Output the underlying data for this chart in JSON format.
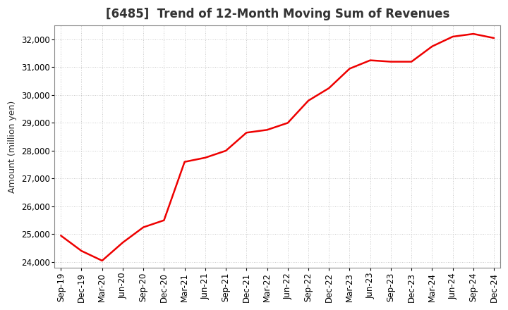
{
  "title": "[6485]  Trend of 12-Month Moving Sum of Revenues",
  "ylabel": "Amount (million yen)",
  "background_color": "#ffffff",
  "plot_bg_color": "#ffffff",
  "grid_color": "#bbbbbb",
  "line_color": "#ee0000",
  "line_width": 1.8,
  "x_labels": [
    "Sep-19",
    "Dec-19",
    "Mar-20",
    "Jun-20",
    "Sep-20",
    "Dec-20",
    "Mar-21",
    "Jun-21",
    "Sep-21",
    "Dec-21",
    "Mar-22",
    "Jun-22",
    "Sep-22",
    "Dec-22",
    "Mar-23",
    "Jun-23",
    "Sep-23",
    "Dec-23",
    "Mar-24",
    "Jun-24",
    "Sep-24",
    "Dec-24"
  ],
  "y_values": [
    24950,
    24400,
    24050,
    24700,
    25250,
    25500,
    27600,
    27750,
    28000,
    28650,
    28750,
    29000,
    29800,
    30250,
    30950,
    31250,
    31200,
    31200,
    31750,
    32100,
    32200,
    32050
  ],
  "ylim": [
    23800,
    32500
  ],
  "yticks": [
    24000,
    25000,
    26000,
    27000,
    28000,
    29000,
    30000,
    31000,
    32000
  ],
  "title_fontsize": 12,
  "title_color": "#333333",
  "ylabel_fontsize": 9,
  "tick_fontsize": 8.5
}
